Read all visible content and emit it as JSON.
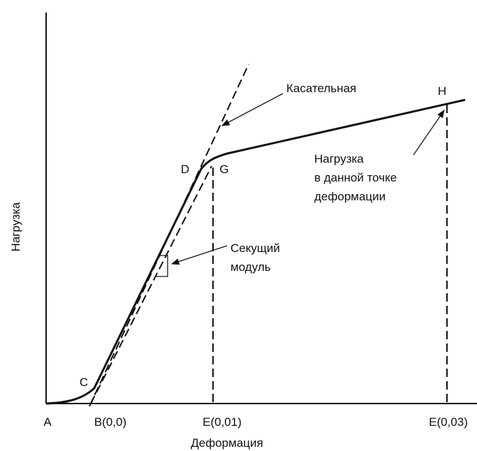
{
  "axes": {
    "y_label": "Нагрузка",
    "x_label": "Деформация"
  },
  "x_ticks": [
    "A",
    "B(0,0)",
    "E(0,01)",
    "E(0,03)"
  ],
  "points": [
    "C",
    "D",
    "G",
    "H"
  ],
  "annotations": {
    "tangent": "Касательная",
    "secant": [
      "Секущий",
      "модуль"
    ],
    "load": [
      "Нагрузка",
      "в данной точке",
      "деформации"
    ]
  }
}
